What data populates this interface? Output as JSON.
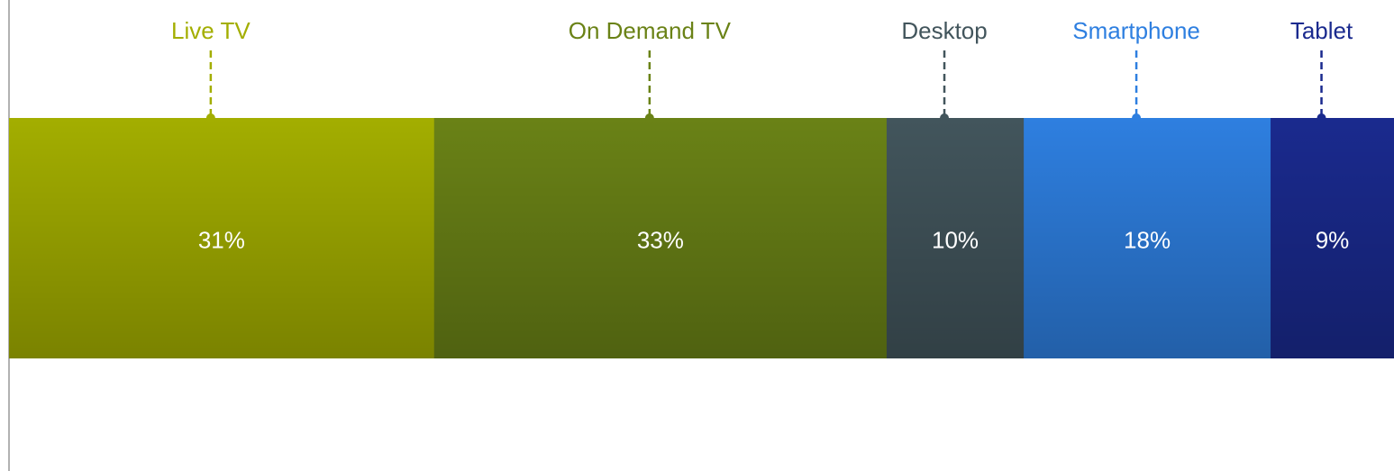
{
  "chart_data": {
    "type": "stacked-bar",
    "series": [
      {
        "name": "Live TV",
        "color": "#a3ae00",
        "values": [
          31
        ],
        "value_labels": [
          "31%"
        ]
      },
      {
        "name": "On Demand TV",
        "color": "#6a8216",
        "values": [
          33
        ],
        "value_labels": [
          "33%"
        ]
      },
      {
        "name": "Desktop",
        "color": "#42555c",
        "values": [
          10
        ],
        "value_labels": [
          "10%"
        ]
      },
      {
        "name": "Smartphone",
        "color": "#2e7fe0",
        "values": [
          18
        ],
        "value_labels": [
          "18%"
        ]
      },
      {
        "name": "Tablet",
        "color": "#1a2a8e",
        "values": [
          9
        ],
        "value_labels": [
          "9%"
        ]
      }
    ]
  }
}
